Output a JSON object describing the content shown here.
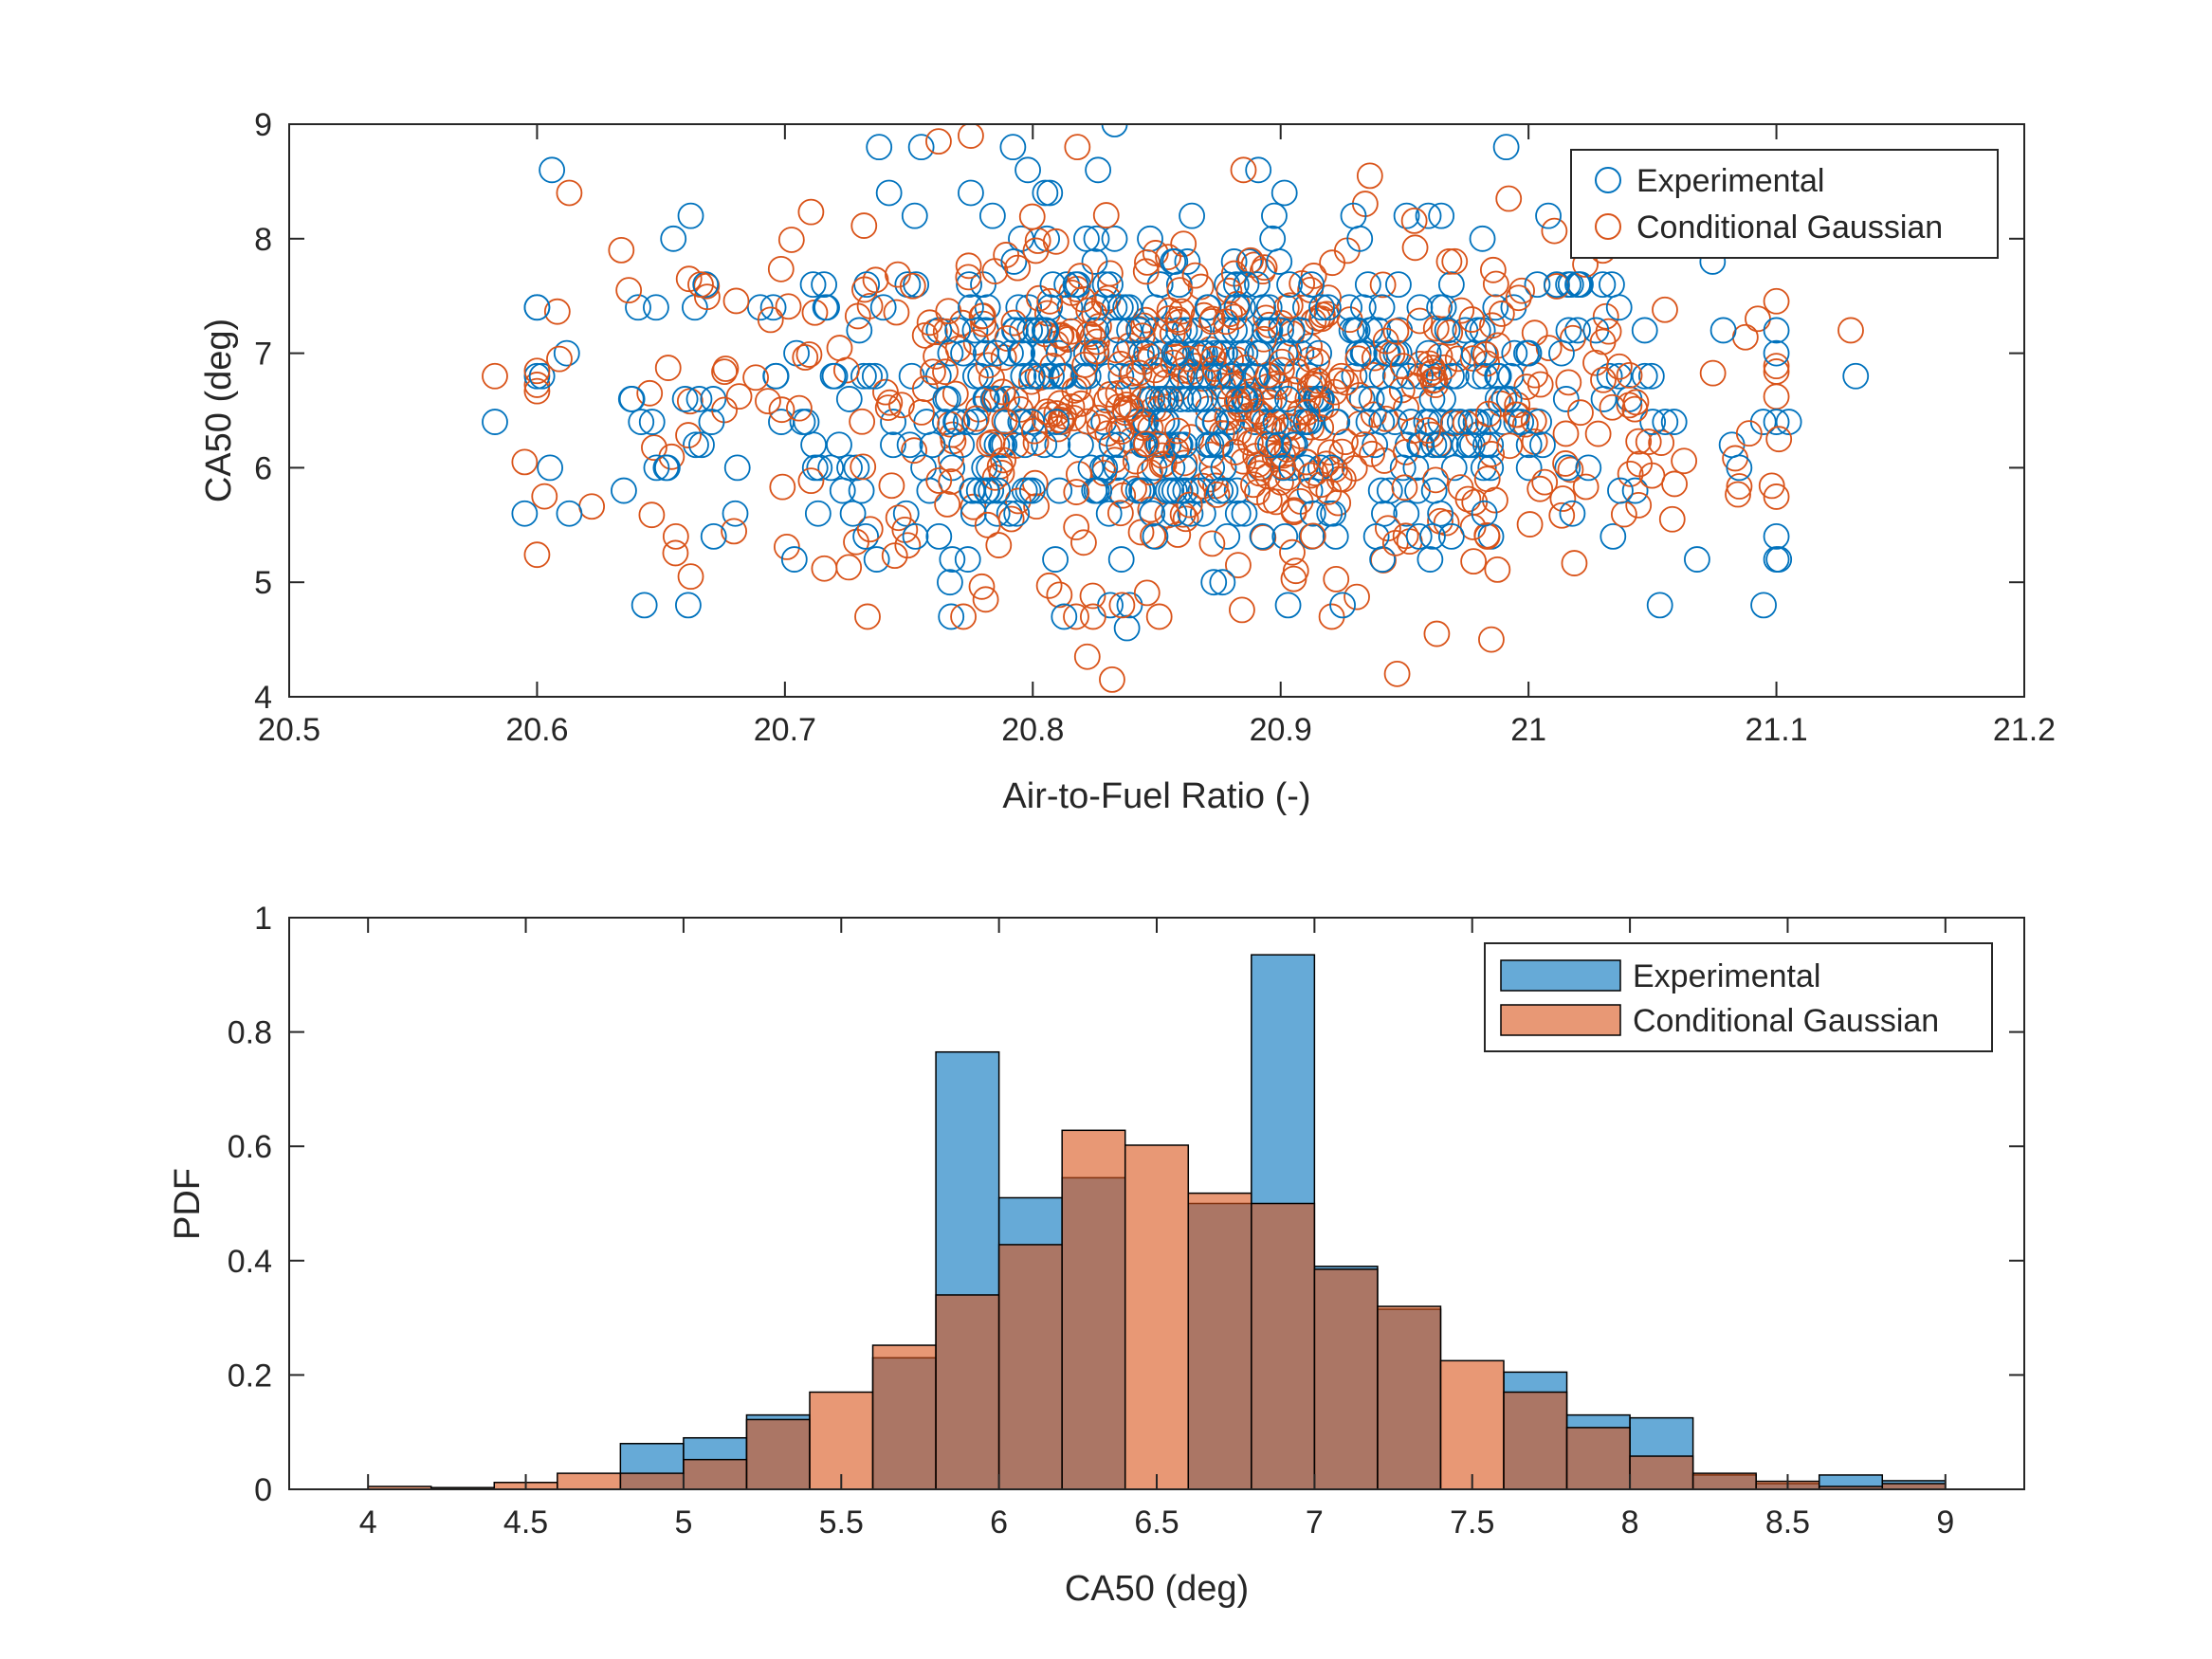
{
  "chart_data": [
    {
      "type": "scatter",
      "xlabel": "Air-to-Fuel Ratio (-)",
      "ylabel": "CA50 (deg)",
      "xlim": [
        20.5,
        21.2
      ],
      "ylim": [
        4,
        9
      ],
      "xticks": [
        "20.5",
        "20.6",
        "20.7",
        "20.8",
        "20.9",
        "21",
        "21.1",
        "21.2"
      ],
      "yticks": [
        "4",
        "5",
        "6",
        "7",
        "8",
        "9"
      ],
      "legend": {
        "placement": "top-right",
        "entries": [
          "Experimental",
          "Conditional Gaussian"
        ]
      },
      "series": [
        {
          "name": "Experimental",
          "color": "#0072BD",
          "x": [
            20.583,
            20.595,
            20.602,
            20.606,
            20.612,
            20.613,
            20.635,
            20.638,
            20.642,
            20.648,
            20.652,
            20.655,
            20.661,
            20.662,
            20.668,
            20.738,
            20.742,
            20.755,
            20.775,
            20.792,
            20.798,
            20.805,
            20.833,
            20.838,
            20.891,
            20.903,
            20.925,
            20.991,
            21.008,
            21.035,
            21.053,
            21.068,
            21.085,
            21.101,
            21.105,
            21.132
          ],
          "y": [
            6.4,
            5.6,
            6.8,
            8.6,
            7.0,
            5.6,
            5.8,
            6.6,
            6.4,
            7.4,
            6.0,
            8.0,
            4.8,
            8.2,
            7.6,
            8.8,
            8.4,
            8.8,
            8.4,
            8.8,
            8.6,
            8.4,
            9.0,
            4.6,
            8.6,
            4.8,
            4.8,
            8.8,
            8.2,
            8.0,
            4.8,
            5.2,
            6.0,
            5.2,
            6.4,
            6.8
          ],
          "cloud": {
            "n": 560,
            "x_mean": 20.87,
            "x_sd": 0.1,
            "y_mean": 6.6,
            "y_sd": 0.7,
            "y_step": 0.2
          }
        },
        {
          "name": "Conditional Gaussian",
          "color": "#D95319",
          "x": [
            20.583,
            20.595,
            20.603,
            20.609,
            20.613,
            20.634,
            20.637,
            20.656,
            20.662,
            20.666,
            20.762,
            20.775,
            20.772,
            20.781,
            20.818,
            20.822,
            20.832,
            20.836,
            20.885,
            20.936,
            20.947,
            20.963,
            20.985,
            20.992,
            21.03,
            21.058,
            21.089,
            21.101,
            21.13
          ],
          "y": [
            6.8,
            6.05,
            5.75,
            6.95,
            8.4,
            7.9,
            7.55,
            5.4,
            5.05,
            7.6,
            8.85,
            8.9,
            4.7,
            4.85,
            8.8,
            4.35,
            4.15,
            4.8,
            8.6,
            8.55,
            4.2,
            4.55,
            4.5,
            8.35,
            7.1,
            5.55,
            6.3,
            6.25,
            7.2
          ],
          "cloud": {
            "n": 560,
            "x_mean": 20.87,
            "x_sd": 0.1,
            "y_mean": 6.55,
            "y_sd": 0.75,
            "y_step": 0
          }
        }
      ]
    },
    {
      "type": "bar",
      "subtype": "histogram",
      "xlabel": "CA50 (deg)",
      "ylabel": "PDF",
      "xlim": [
        3.75,
        9.25
      ],
      "ylim": [
        0,
        1
      ],
      "xticks": [
        "4",
        "4.5",
        "5",
        "5.5",
        "6",
        "6.5",
        "7",
        "7.5",
        "8",
        "8.5",
        "9"
      ],
      "yticks": [
        "0",
        "0.2",
        "0.4",
        "0.6",
        "0.8",
        "1"
      ],
      "legend": {
        "placement": "top-right",
        "entries": [
          "Experimental",
          "Conditional Gaussian"
        ]
      },
      "bin_edges": [
        4.0,
        4.2,
        4.4,
        4.6,
        4.8,
        5.0,
        5.2,
        5.4,
        5.6,
        5.8,
        6.0,
        6.2,
        6.4,
        6.6,
        6.8,
        7.0,
        7.2,
        7.4,
        7.6,
        7.8,
        8.0,
        8.2,
        8.4,
        8.6,
        8.8,
        9.0
      ],
      "series": [
        {
          "name": "Experimental",
          "color": "#0072BD",
          "alpha": 0.6,
          "values": [
            0.0,
            0.0,
            0.0,
            0.0,
            0.08,
            0.09,
            0.13,
            0.0,
            0.23,
            0.765,
            0.51,
            0.545,
            0.0,
            0.5,
            0.935,
            0.39,
            0.315,
            0.0,
            0.205,
            0.13,
            0.125,
            0.025,
            0.01,
            0.025,
            0.015
          ]
        },
        {
          "name": "Conditional Gaussian",
          "color": "#D95319",
          "alpha": 0.6,
          "values": [
            0.005,
            0.003,
            0.012,
            0.028,
            0.028,
            0.052,
            0.122,
            0.17,
            0.252,
            0.34,
            0.428,
            0.628,
            0.602,
            0.518,
            0.5,
            0.385,
            0.32,
            0.225,
            0.17,
            0.108,
            0.058,
            0.028,
            0.014,
            0.005,
            0.01
          ]
        }
      ]
    }
  ]
}
